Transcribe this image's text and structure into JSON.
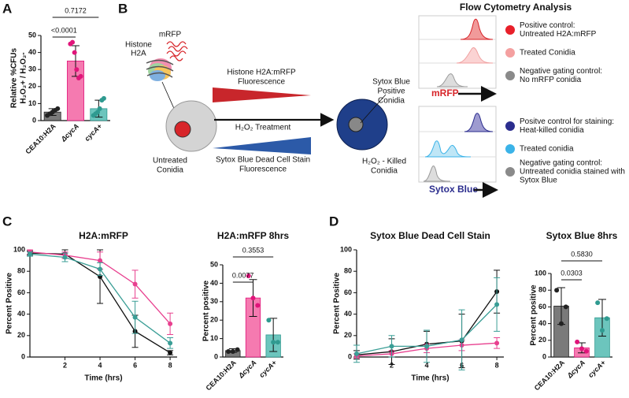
{
  "panel_labels": [
    "A",
    "B",
    "C",
    "D"
  ],
  "diagram": {
    "mrfp_label": "mRFP",
    "histone_label": [
      "Histone",
      "H2A"
    ],
    "untreated": [
      "Untreated",
      "Conidia"
    ],
    "mrfp_fluorescence": [
      "Histone H2A:mRFP",
      "Fluorescence"
    ],
    "treatment": "H₂O₂ Treatment",
    "sytox_fluorescence": [
      "Sytox Blue Dead Cell Stain",
      "Fluorescence"
    ],
    "sytox_positive": [
      "Sytox Blue",
      "Positive",
      "Conidia"
    ],
    "killed": [
      "H₂O₂ - Killed",
      "Conidia"
    ],
    "flow_title": "Flow Cytometry Analysis",
    "mrfp_legend": [
      {
        "color": "#e8202a",
        "label": [
          "Positive control:",
          "Untreated H2A:mRFP"
        ]
      },
      {
        "color": "#f4a0a0",
        "label": [
          "Treated Conidia"
        ]
      },
      {
        "color": "#8a8a8a",
        "label": [
          "Negative gating control:",
          "No mRFP conidia"
        ]
      }
    ],
    "mrfp_axis": "mRFP",
    "sytox_legend": [
      {
        "color": "#2b2d8e",
        "label": [
          "Positve control for staining:",
          "Heat-killed conidia"
        ]
      },
      {
        "color": "#3bb3e8",
        "label": [
          "Treated conidia"
        ]
      },
      {
        "color": "#8a8a8a",
        "label": [
          "Negative gating control:",
          "Untreated conidia stained with",
          "Sytox Blue"
        ]
      }
    ],
    "sytox_axis": "Sytox Blue"
  },
  "chart_data": [
    {
      "type": "bar",
      "ylabel": [
        "Relative %CFUs",
        "H₂O₂+ / H₂O₂-"
      ],
      "categories": [
        "CEA10:H2A",
        "ΔcycA",
        "cycA+"
      ],
      "values": [
        5,
        35,
        7
      ],
      "errors": [
        2,
        9,
        5
      ],
      "points": [
        [
          3,
          4,
          5,
          6,
          7
        ],
        [
          45,
          46,
          40,
          30,
          25,
          26
        ],
        [
          3,
          4,
          5,
          7,
          12,
          13
        ]
      ],
      "colors": [
        "#7a7a7a",
        "#f57ab0",
        "#6cc5bd"
      ],
      "edge_colors": [
        "#222222",
        "#e0157a",
        "#2f9a90"
      ],
      "ylim": [
        0,
        50
      ],
      "yticks": [
        0,
        10,
        20,
        30,
        40,
        50
      ],
      "annotations": [
        "0.7172",
        "<0.0001"
      ]
    },
    {
      "type": "line",
      "title": "H2A:mRFP",
      "xlabel": "Time (hrs)",
      "ylabel": "Percent Positive",
      "x": [
        0,
        2,
        4,
        6,
        8
      ],
      "xlim": [
        0,
        8.4
      ],
      "xticks": [
        2,
        4,
        6,
        8
      ],
      "ylim": [
        0,
        100
      ],
      "yticks": [
        0,
        20,
        40,
        60,
        80,
        100
      ],
      "series": [
        {
          "color": "#111111",
          "values": [
            97,
            96,
            75,
            24,
            4
          ],
          "errors": [
            2,
            4,
            25,
            15,
            2
          ]
        },
        {
          "color": "#e8408f",
          "values": [
            98,
            95,
            90,
            68,
            31
          ],
          "errors": [
            2,
            3,
            8,
            13,
            10
          ]
        },
        {
          "color": "#3a9e96",
          "values": [
            96,
            93,
            82,
            37,
            13
          ],
          "errors": [
            2,
            4,
            6,
            15,
            5
          ]
        }
      ]
    },
    {
      "type": "bar",
      "title": "H2A:mRFP 8hrs",
      "ylabel": [
        "Percent positive"
      ],
      "categories": [
        "CEA10:H2A",
        "ΔcycA",
        "cycA+"
      ],
      "values": [
        3.5,
        32,
        12
      ],
      "errors": [
        1,
        10,
        9
      ],
      "points": [
        [
          3,
          3,
          4
        ],
        [
          44,
          32,
          28
        ],
        [
          20,
          8,
          8
        ]
      ],
      "colors": [
        "#7a7a7a",
        "#f57ab0",
        "#6cc5bd"
      ],
      "edge_colors": [
        "#222222",
        "#e0157a",
        "#2f9a90"
      ],
      "ylim": [
        0,
        50
      ],
      "yticks": [
        0,
        10,
        20,
        30,
        40,
        50
      ],
      "annotations": [
        "0.3553",
        "0.0077"
      ]
    },
    {
      "type": "line",
      "title": "Sytox Blue Dead Cell Stain",
      "xlabel": "Time (hrs)",
      "ylabel": "Percent Positive",
      "x": [
        0,
        2,
        4,
        6,
        8
      ],
      "xlim": [
        0,
        8.4
      ],
      "xticks": [
        2,
        4,
        6,
        8
      ],
      "ylim": [
        0,
        100
      ],
      "yticks": [
        0,
        20,
        40,
        60,
        80,
        100
      ],
      "series": [
        {
          "color": "#111111",
          "values": [
            2,
            5,
            12,
            15,
            61
          ],
          "errors": [
            4,
            12,
            12,
            25,
            20
          ]
        },
        {
          "color": "#e8408f",
          "values": [
            1,
            3,
            8,
            11,
            13
          ],
          "errors": [
            2,
            3,
            4,
            5,
            5
          ]
        },
        {
          "color": "#3a9e96",
          "values": [
            3,
            10,
            10,
            16,
            49
          ],
          "errors": [
            8,
            10,
            15,
            28,
            25
          ]
        }
      ]
    },
    {
      "type": "bar",
      "title": "Sytox Blue 8hrs",
      "ylabel": [
        "Percent positive"
      ],
      "categories": [
        "CEA10:H2A",
        "ΔcycA",
        "cycA+"
      ],
      "values": [
        61,
        11,
        47
      ],
      "errors": [
        22,
        6,
        22
      ],
      "points": [
        [
          80,
          40,
          60
        ],
        [
          18,
          10,
          7
        ],
        [
          65,
          32,
          46
        ]
      ],
      "colors": [
        "#7a7a7a",
        "#f57ab0",
        "#6cc5bd"
      ],
      "edge_colors": [
        "#222222",
        "#e0157a",
        "#2f9a90"
      ],
      "ylim": [
        0,
        100
      ],
      "yticks": [
        0,
        20,
        40,
        60,
        80,
        100
      ],
      "annotations": [
        "0.5830",
        "0.0303"
      ]
    }
  ]
}
